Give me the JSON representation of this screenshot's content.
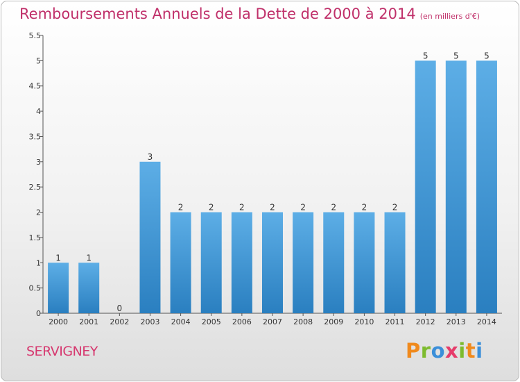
{
  "header": {
    "title": "Remboursements Annuels de la Dette de 2000 à 2014",
    "subtitle": "(en milliers d'€)"
  },
  "footer": {
    "commune": "SERVIGNEY",
    "brand": "Proxiti"
  },
  "colors": {
    "title": "#c0306a",
    "bar_top": "#5daee6",
    "bar_bottom": "#2a7fc0",
    "axis": "#555555"
  },
  "chart_data": {
    "type": "bar",
    "title": "Remboursements Annuels de la Dette de 2000 à 2014",
    "subtitle": "(en milliers d'€)",
    "categories": [
      "2000",
      "2001",
      "2002",
      "2003",
      "2004",
      "2005",
      "2006",
      "2007",
      "2008",
      "2009",
      "2010",
      "2011",
      "2012",
      "2013",
      "2014"
    ],
    "values": [
      1,
      1,
      0,
      3,
      2,
      2,
      2,
      2,
      2,
      2,
      2,
      2,
      5,
      5,
      5
    ],
    "value_labels": [
      "1",
      "1",
      "0",
      "3",
      "2",
      "2",
      "2",
      "2",
      "2",
      "2",
      "2",
      "2",
      "5",
      "5",
      "5"
    ],
    "yticks": [
      "0",
      "0.5",
      "1",
      "1.5",
      "2",
      "2.5",
      "3",
      "3.5",
      "4",
      "4.5",
      "5",
      "5.5"
    ],
    "ylim": [
      0,
      5.5
    ],
    "xlabel": "",
    "ylabel": "",
    "grid": false,
    "legend": "none"
  }
}
